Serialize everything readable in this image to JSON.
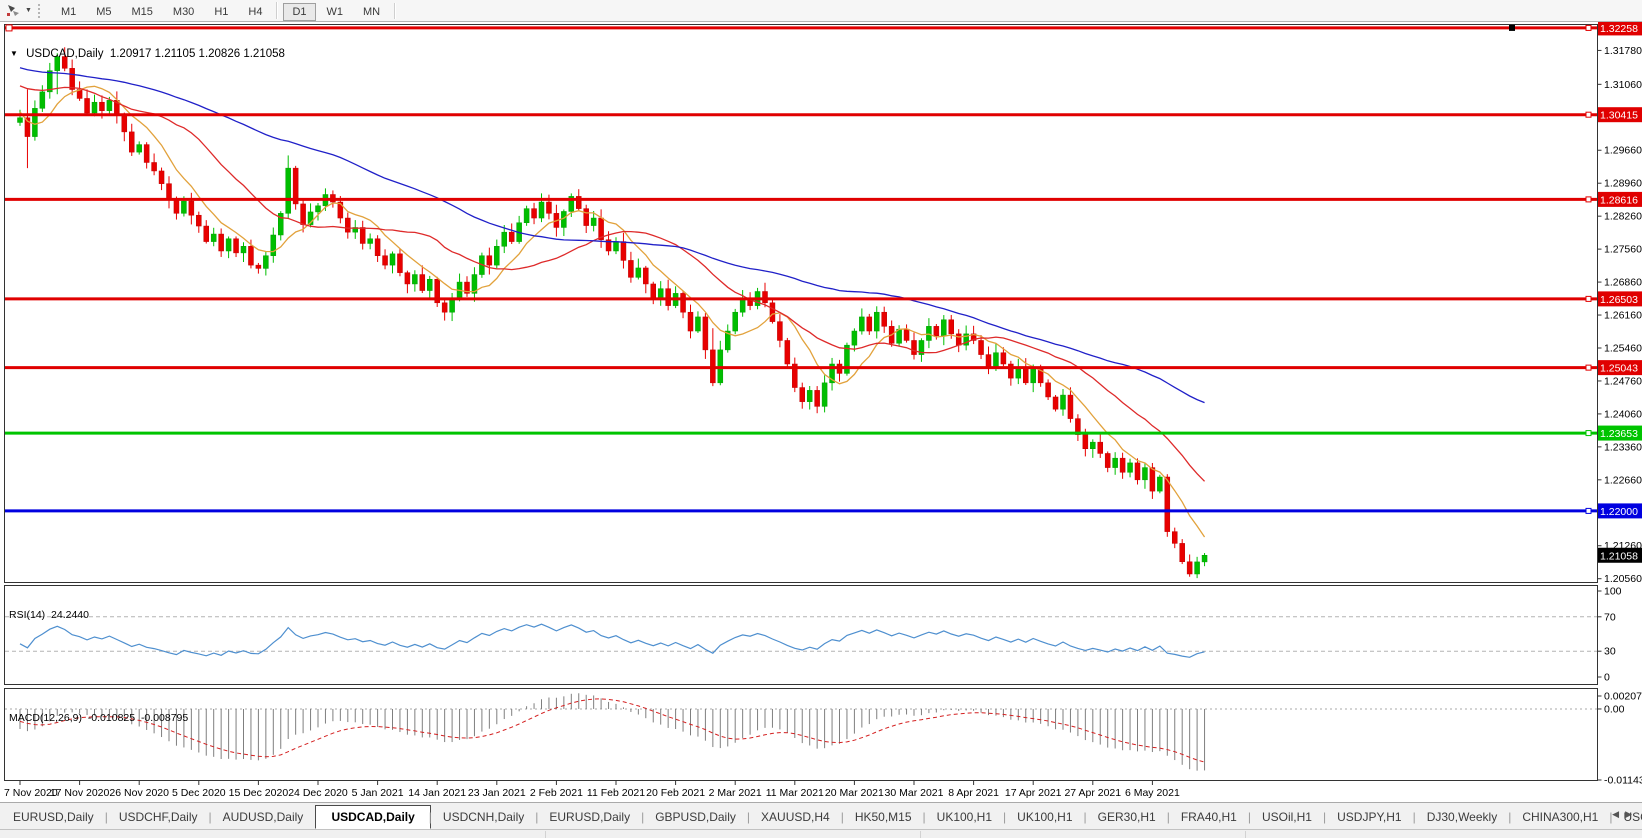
{
  "toolbar": {
    "timeframes": [
      "M1",
      "M5",
      "M15",
      "M30",
      "H1",
      "H4",
      "D1",
      "W1",
      "MN"
    ],
    "active_timeframe": "D1",
    "chart_icon": "chart-cursor-icon",
    "dropdown": "caret-down-icon"
  },
  "chart": {
    "title": {
      "symbol_timeframe": "USDCAD,Daily",
      "open": "1.20917",
      "high": "1.21105",
      "low": "1.20826",
      "close": "1.21058"
    }
  },
  "chart_data": {
    "type": "candlestick",
    "symbol": "USDCAD",
    "timeframe": "Daily",
    "title_ohlc": {
      "open": 1.20917,
      "high": 1.21105,
      "low": 1.20826,
      "close": 1.21058
    },
    "x_date_labels": [
      "7 Nov 2020",
      "17 Nov 2020",
      "26 Nov 2020",
      "5 Dec 2020",
      "15 Dec 2020",
      "24 Dec 2020",
      "5 Jan 2021",
      "14 Jan 2021",
      "23 Jan 2021",
      "2 Feb 2021",
      "11 Feb 2021",
      "20 Feb 2021",
      "2 Mar 2021",
      "11 Mar 2021",
      "20 Mar 2021",
      "30 Mar 2021",
      "8 Apr 2021",
      "17 Apr 2021",
      "27 Apr 2021",
      "6 May 2021"
    ],
    "bars_per_label": 8,
    "closes": [
      1.3035,
      1.2995,
      1.3055,
      1.309,
      1.3135,
      1.3165,
      1.314,
      1.3095,
      1.3076,
      1.3045,
      1.3068,
      1.305,
      1.3072,
      1.304,
      1.3005,
      1.2962,
      1.2978,
      1.294,
      1.2922,
      1.2895,
      1.2862,
      1.2832,
      1.2858,
      1.2828,
      1.2805,
      1.2772,
      1.2788,
      1.2752,
      1.2778,
      1.2748,
      1.2762,
      1.2722,
      1.2715,
      1.2742,
      1.2786,
      1.2832,
      1.2928,
      1.2852,
      1.2808,
      1.2835,
      1.2848,
      1.2872,
      1.2856,
      1.2822,
      1.2792,
      1.2802,
      1.2768,
      1.2778,
      1.2742,
      1.2722,
      1.2746,
      1.2706,
      1.2682,
      1.2702,
      1.2668,
      1.2692,
      1.2642,
      1.2622,
      1.2652,
      1.2686,
      1.2662,
      1.2702,
      1.2742,
      1.2722,
      1.2762,
      1.2792,
      1.2772,
      1.2812,
      1.2842,
      1.2822,
      1.2856,
      1.2832,
      1.2802,
      1.2836,
      1.2868,
      1.2842,
      1.2806,
      1.2822,
      1.2776,
      1.2752,
      1.2772,
      1.2732,
      1.2696,
      1.2716,
      1.2682,
      1.2652,
      1.2672,
      1.2636,
      1.2662,
      1.2622,
      1.2582,
      1.2612,
      1.2542,
      1.2472,
      1.2542,
      1.2582,
      1.2622,
      1.2652,
      1.2636,
      1.2666,
      1.2642,
      1.2602,
      1.2562,
      1.2512,
      1.2462,
      1.2432,
      1.2456,
      1.2422,
      1.2472,
      1.2512,
      1.2492,
      1.2552,
      1.2582,
      1.2612,
      1.2582,
      1.2622,
      1.2592,
      1.2556,
      1.2586,
      1.2562,
      1.2532,
      1.2562,
      1.2592,
      1.2572,
      1.2606,
      1.2576,
      1.2552,
      1.2576,
      1.2562,
      1.2532,
      1.2506,
      1.2536,
      1.2512,
      1.2482,
      1.2506,
      1.2472,
      1.2502,
      1.2472,
      1.2442,
      1.2416,
      1.2446,
      1.2396,
      1.2362,
      1.2332,
      1.2346,
      1.2322,
      1.2292,
      1.2312,
      1.2282,
      1.2302,
      1.2266,
      1.2292,
      1.2242,
      1.2272,
      1.2156,
      1.2131,
      1.2092,
      1.2066,
      1.20917,
      1.21058
    ],
    "prehistory_closes": [
      1.3225,
      1.3212,
      1.322,
      1.3205,
      1.3213,
      1.3198,
      1.3208,
      1.3192,
      1.3202,
      1.3186,
      1.3196,
      1.318,
      1.319,
      1.3174,
      1.3184,
      1.3168,
      1.3178,
      1.3162,
      1.3172,
      1.3156,
      1.3166,
      1.315,
      1.316,
      1.3145,
      1.3155,
      1.314,
      1.315,
      1.3134,
      1.3144,
      1.3128,
      1.3138,
      1.3122,
      1.3132,
      1.3116,
      1.3126,
      1.311,
      1.312,
      1.3105,
      1.3115,
      1.31,
      1.311,
      1.3095,
      1.3105,
      1.3112,
      1.3146,
      1.318,
      1.3208,
      1.3186,
      1.3195,
      1.3152,
      1.3108,
      1.3052,
      1.301,
      1.2985,
      1.3012,
      1.3025
    ],
    "wick_overrides": {
      "1": [
        1.3095,
        1.2928
      ],
      "5": [
        1.3172,
        1.3085
      ],
      "36": [
        1.2955,
        1.2822
      ],
      "93": [
        1.2588,
        1.2465
      ],
      "154": [
        1.2278,
        1.2145
      ],
      "159": [
        1.21105,
        1.20826
      ]
    },
    "candle_colors": {
      "up": "#00BE00",
      "up_stroke": "#00A000",
      "down": "#E80000",
      "down_stroke": "#C00000"
    },
    "moving_averages": [
      {
        "name": "fast",
        "period": 8,
        "color": "#E2A23C"
      },
      {
        "name": "mid",
        "period": 21,
        "color": "#DE2A2A"
      },
      {
        "name": "slow",
        "period": 55,
        "color": "#2020C8"
      }
    ],
    "price_axis": {
      "max": 1.3232,
      "min": 1.2049,
      "ticks": [
        "1.31780",
        "1.31060",
        "1.29660",
        "1.28960",
        "1.28260",
        "1.27560",
        "1.26860",
        "1.26160",
        "1.25460",
        "1.24760",
        "1.24060",
        "1.23360",
        "1.22660",
        "1.21260",
        "1.20560"
      ],
      "current_price": {
        "label": "1.21058",
        "value": 1.21058,
        "bg": "#000000",
        "fg": "#ffffff"
      }
    },
    "hlines": [
      {
        "label": "1.32258",
        "value": 1.32258,
        "color": "#E00000",
        "selected": true
      },
      {
        "label": "1.30415",
        "value": 1.30415,
        "color": "#E00000"
      },
      {
        "label": "1.28616",
        "value": 1.28616,
        "color": "#E00000"
      },
      {
        "label": "1.26503",
        "value": 1.26503,
        "color": "#E00000"
      },
      {
        "label": "1.25043",
        "value": 1.25043,
        "color": "#E00000"
      },
      {
        "label": "1.23653",
        "value": 1.23653,
        "color": "#00C400"
      },
      {
        "label": "1.22000",
        "value": 1.22,
        "color": "#0000E0"
      }
    ],
    "rsi": {
      "name": "RSI(14)",
      "value": "24.2440",
      "period": 14,
      "color": "#4E8FCF",
      "levels": [
        70,
        30
      ],
      "axis_ticks": [
        "100",
        "70",
        "30",
        "0"
      ]
    },
    "macd": {
      "name": "MACD(12,26,9)",
      "main_value": "-0.010825",
      "signal_value": "-0.008795",
      "fast": 12,
      "slow": 26,
      "signal": 9,
      "histogram_color": "#7F7F7F",
      "signal_color": "#D42020",
      "axis_max": 0.002073,
      "axis_min": -0.011435,
      "axis_ticks": [
        "0.002073",
        "0.00",
        "-0.011435"
      ]
    }
  },
  "tabs": {
    "items": [
      "EURUSD,Daily",
      "USDCHF,Daily",
      "AUDUSD,Daily",
      "USDCAD,Daily",
      "USDCNH,Daily",
      "EURUSD,Daily",
      "GBPUSD,Daily",
      "XAUUSD,H4",
      "HK50,M15",
      "UK100,H1",
      "UK100,H1",
      "GER30,H1",
      "FRA40,H1",
      "USOil,H1",
      "USDJPY,H1",
      "DJ30,Weekly",
      "CHINA300,H1",
      "USC"
    ],
    "active_index": 3,
    "scroll_left": "tabs-scroll-left-icon",
    "scroll_right": "tabs-scroll-right-icon"
  }
}
